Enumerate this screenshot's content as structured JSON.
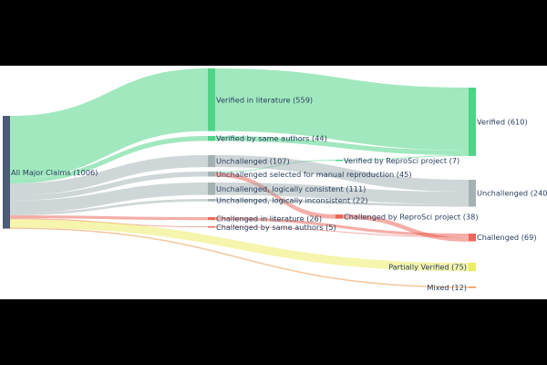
{
  "diagram": {
    "type": "sankey",
    "nodes": [
      {
        "id": "all",
        "label": "All Major Claims (1006)",
        "value": 1006,
        "color": "#2a3f5f"
      },
      {
        "id": "ver_lit",
        "label": "Verified in literature (559)",
        "value": 559,
        "color": "#2ecc71"
      },
      {
        "id": "ver_auth",
        "label": "Verified by same authors (44)",
        "value": 44,
        "color": "#2ecc71"
      },
      {
        "id": "unch",
        "label": "Unchallenged (107)",
        "value": 107,
        "color": "#95a5a6"
      },
      {
        "id": "unch_sel",
        "label": "Unchallenged selected for manual reproduction (45)",
        "value": 45,
        "color": "#95a5a6"
      },
      {
        "id": "unch_cons",
        "label": "Unchallenged, logically consistent (111)",
        "value": 111,
        "color": "#95a5a6"
      },
      {
        "id": "unch_incons",
        "label": "Unchallenged, logically inconsistent (22)",
        "value": 22,
        "color": "#95a5a6"
      },
      {
        "id": "ch_lit",
        "label": "Challenged in literature (26)",
        "value": 26,
        "color": "#e74c3c"
      },
      {
        "id": "ch_auth",
        "label": "Challenged by same authors (5)",
        "value": 5,
        "color": "#e74c3c"
      },
      {
        "id": "ver_repro",
        "label": "Verified by ReproSci project (7)",
        "value": 7,
        "color": "#2ecc71"
      },
      {
        "id": "ch_repro",
        "label": "Challenged by ReproSci project (38)",
        "value": 38,
        "color": "#e74c3c"
      },
      {
        "id": "verified",
        "label": "Verified (610)",
        "value": 610,
        "color": "#2ecc71"
      },
      {
        "id": "unchallenged",
        "label": "Unchallenged (240)",
        "value": 240,
        "color": "#95a5a6"
      },
      {
        "id": "challenged",
        "label": "Challenged (69)",
        "value": 69,
        "color": "#e74c3c"
      },
      {
        "id": "partial",
        "label": "Partially Verified (75)",
        "value": 75,
        "color": "#e8e84a"
      },
      {
        "id": "mixed",
        "label": "Mixed (12)",
        "value": 12,
        "color": "#e67e22"
      }
    ],
    "links": [
      {
        "source": "all",
        "target": "ver_lit",
        "value": 559
      },
      {
        "source": "all",
        "target": "ver_auth",
        "value": 44
      },
      {
        "source": "all",
        "target": "unch",
        "value": 107
      },
      {
        "source": "all",
        "target": "unch_sel",
        "value": 45
      },
      {
        "source": "all",
        "target": "unch_cons",
        "value": 111
      },
      {
        "source": "all",
        "target": "unch_incons",
        "value": 22
      },
      {
        "source": "all",
        "target": "ch_lit",
        "value": 26
      },
      {
        "source": "all",
        "target": "ch_auth",
        "value": 5
      },
      {
        "source": "all",
        "target": "partial",
        "value": 75
      },
      {
        "source": "all",
        "target": "mixed",
        "value": 12
      },
      {
        "source": "ver_lit",
        "target": "verified",
        "value": 559
      },
      {
        "source": "ver_auth",
        "target": "verified",
        "value": 44
      },
      {
        "source": "unch_sel",
        "target": "ver_repro",
        "value": 7
      },
      {
        "source": "unch_sel",
        "target": "ch_repro",
        "value": 38
      },
      {
        "source": "ver_repro",
        "target": "verified",
        "value": 7
      },
      {
        "source": "unch",
        "target": "unchallenged",
        "value": 107
      },
      {
        "source": "unch_cons",
        "target": "unchallenged",
        "value": 111
      },
      {
        "source": "unch_incons",
        "target": "unchallenged",
        "value": 22
      },
      {
        "source": "ch_lit",
        "target": "challenged",
        "value": 26
      },
      {
        "source": "ch_auth",
        "target": "challenged",
        "value": 5
      },
      {
        "source": "ch_repro",
        "target": "challenged",
        "value": 38
      }
    ]
  }
}
